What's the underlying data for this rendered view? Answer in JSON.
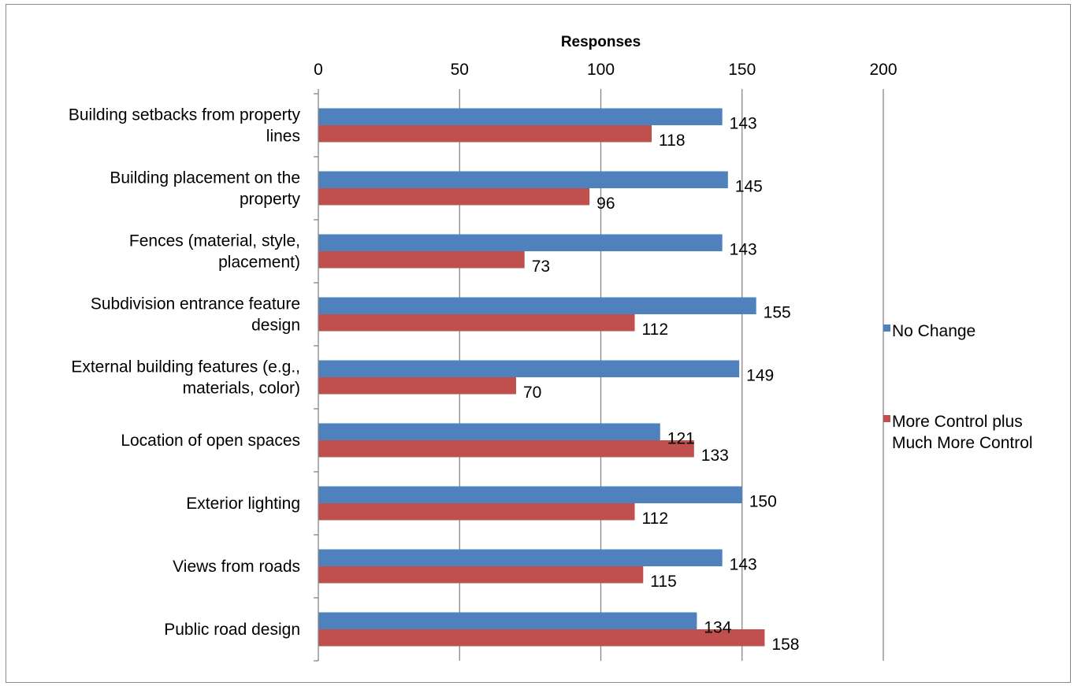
{
  "chart_data": {
    "type": "bar",
    "orientation": "horizontal",
    "title": "",
    "xlabel": "Responses",
    "ylabel": "",
    "xlim": [
      0,
      200
    ],
    "x_ticks": [
      "0",
      "50",
      "100",
      "150",
      "200"
    ],
    "x_axis_position": "top",
    "grid": true,
    "legend_position": "right",
    "categories": [
      [
        "Building setbacks from property",
        "lines"
      ],
      [
        "Building placement on the",
        "property"
      ],
      [
        "Fences (material, style,",
        "placement)"
      ],
      [
        "Subdivision entrance feature",
        "design"
      ],
      [
        "External building features (e.g.,",
        "materials, color)"
      ],
      [
        "Location of open spaces"
      ],
      [
        "Exterior lighting"
      ],
      [
        "Views from roads"
      ],
      [
        "Public road design"
      ]
    ],
    "series": [
      {
        "name": "No Change",
        "legend_lines": [
          "No Change"
        ],
        "color": "#4f81bd",
        "values": [
          143,
          145,
          143,
          155,
          149,
          121,
          150,
          143,
          134
        ]
      },
      {
        "name": "More Control plus Much More Control",
        "legend_lines": [
          "More Control plus",
          "Much More Control"
        ],
        "color": "#c0504d",
        "values": [
          118,
          96,
          73,
          112,
          70,
          133,
          112,
          115,
          158
        ]
      }
    ]
  }
}
